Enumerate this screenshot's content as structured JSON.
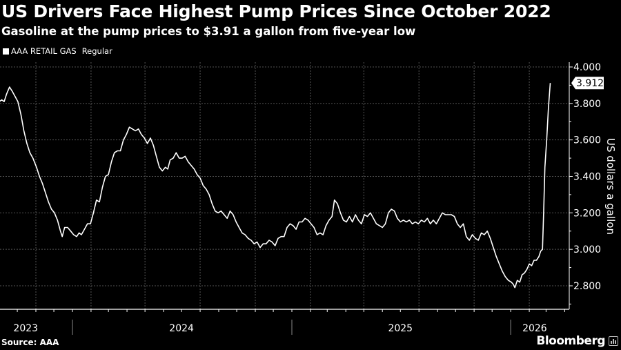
{
  "header": {
    "title": "US Drivers Face Highest Pump Prices Since October 2022",
    "subtitle": "Gasoline at the pump prices to $3.91 a gallon from five-year low"
  },
  "legend": {
    "series_name": "AAA RETAIL GAS",
    "series_sub": "Regular"
  },
  "footer": {
    "source": "Source: AAA",
    "brand": "Bloomberg"
  },
  "colors": {
    "background": "#000000",
    "line": "#ffffff",
    "grid": "#555555"
  },
  "chart_data": {
    "type": "line",
    "title": "US Drivers Face Highest Pump Prices Since October 2022",
    "subtitle": "Gasoline at the pump prices to $3.91 a gallon from five-year low",
    "xlabel": "",
    "ylabel": "US dollars a gallon",
    "ylim": [
      2.68,
      4.05
    ],
    "xlim": [
      "2023-09-01",
      "2026-03-20"
    ],
    "yticks": [
      2.8,
      3.0,
      3.2,
      3.4,
      3.6,
      3.8,
      4.0
    ],
    "ytick_labels": [
      "2.800",
      "3.000",
      "3.200",
      "3.400",
      "3.600",
      "3.800",
      "4.000"
    ],
    "year_labels": [
      "2023",
      "2024",
      "2025",
      "2026"
    ],
    "year_label_dates": [
      "2023-10-15",
      "2024-07-01",
      "2025-07-01",
      "2026-02-10"
    ],
    "year_boundaries": [
      "2024-01-01",
      "2025-01-01",
      "2026-01-01"
    ],
    "grid": true,
    "legend_position": "top-left",
    "last_value_label": "3.912",
    "series": [
      {
        "name": "AAA RETAIL GAS Regular",
        "points": [
          [
            "2023-09-01",
            3.81
          ],
          [
            "2023-09-05",
            3.82
          ],
          [
            "2023-09-09",
            3.81
          ],
          [
            "2023-09-13",
            3.85
          ],
          [
            "2023-09-18",
            3.89
          ],
          [
            "2023-09-22",
            3.87
          ],
          [
            "2023-09-27",
            3.84
          ],
          [
            "2023-10-02",
            3.81
          ],
          [
            "2023-10-07",
            3.74
          ],
          [
            "2023-10-12",
            3.65
          ],
          [
            "2023-10-17",
            3.58
          ],
          [
            "2023-10-22",
            3.53
          ],
          [
            "2023-10-27",
            3.5
          ],
          [
            "2023-11-02",
            3.45
          ],
          [
            "2023-11-07",
            3.4
          ],
          [
            "2023-11-12",
            3.36
          ],
          [
            "2023-11-17",
            3.31
          ],
          [
            "2023-11-22",
            3.26
          ],
          [
            "2023-11-27",
            3.22
          ],
          [
            "2023-12-02",
            3.2
          ],
          [
            "2023-12-07",
            3.16
          ],
          [
            "2023-12-12",
            3.1
          ],
          [
            "2023-12-15",
            3.07
          ],
          [
            "2023-12-19",
            3.12
          ],
          [
            "2023-12-24",
            3.12
          ],
          [
            "2023-12-29",
            3.1
          ],
          [
            "2024-01-03",
            3.08
          ],
          [
            "2024-01-08",
            3.07
          ],
          [
            "2024-01-12",
            3.09
          ],
          [
            "2024-01-16",
            3.08
          ],
          [
            "2024-01-21",
            3.11
          ],
          [
            "2024-01-26",
            3.14
          ],
          [
            "2024-01-31",
            3.14
          ],
          [
            "2024-02-05",
            3.2
          ],
          [
            "2024-02-10",
            3.27
          ],
          [
            "2024-02-15",
            3.26
          ],
          [
            "2024-02-20",
            3.34
          ],
          [
            "2024-02-25",
            3.4
          ],
          [
            "2024-03-01",
            3.41
          ],
          [
            "2024-03-06",
            3.48
          ],
          [
            "2024-03-11",
            3.53
          ],
          [
            "2024-03-16",
            3.54
          ],
          [
            "2024-03-21",
            3.54
          ],
          [
            "2024-03-26",
            3.6
          ],
          [
            "2024-03-31",
            3.63
          ],
          [
            "2024-04-05",
            3.67
          ],
          [
            "2024-04-10",
            3.66
          ],
          [
            "2024-04-15",
            3.65
          ],
          [
            "2024-04-20",
            3.66
          ],
          [
            "2024-04-25",
            3.63
          ],
          [
            "2024-04-30",
            3.61
          ],
          [
            "2024-05-05",
            3.58
          ],
          [
            "2024-05-10",
            3.61
          ],
          [
            "2024-05-15",
            3.57
          ],
          [
            "2024-05-20",
            3.51
          ],
          [
            "2024-05-25",
            3.45
          ],
          [
            "2024-05-30",
            3.43
          ],
          [
            "2024-06-04",
            3.45
          ],
          [
            "2024-06-08",
            3.44
          ],
          [
            "2024-06-12",
            3.49
          ],
          [
            "2024-06-17",
            3.5
          ],
          [
            "2024-06-22",
            3.53
          ],
          [
            "2024-06-27",
            3.5
          ],
          [
            "2024-07-02",
            3.5
          ],
          [
            "2024-07-07",
            3.51
          ],
          [
            "2024-07-12",
            3.48
          ],
          [
            "2024-07-17",
            3.46
          ],
          [
            "2024-07-22",
            3.44
          ],
          [
            "2024-07-27",
            3.41
          ],
          [
            "2024-08-01",
            3.39
          ],
          [
            "2024-08-06",
            3.35
          ],
          [
            "2024-08-11",
            3.33
          ],
          [
            "2024-08-16",
            3.3
          ],
          [
            "2024-08-21",
            3.25
          ],
          [
            "2024-08-26",
            3.21
          ],
          [
            "2024-08-31",
            3.2
          ],
          [
            "2024-09-05",
            3.21
          ],
          [
            "2024-09-10",
            3.19
          ],
          [
            "2024-09-15",
            3.17
          ],
          [
            "2024-09-20",
            3.21
          ],
          [
            "2024-09-25",
            3.19
          ],
          [
            "2024-09-30",
            3.15
          ],
          [
            "2024-10-05",
            3.12
          ],
          [
            "2024-10-10",
            3.09
          ],
          [
            "2024-10-15",
            3.08
          ],
          [
            "2024-10-20",
            3.06
          ],
          [
            "2024-10-25",
            3.05
          ],
          [
            "2024-10-30",
            3.03
          ],
          [
            "2024-11-04",
            3.04
          ],
          [
            "2024-11-09",
            3.01
          ],
          [
            "2024-11-14",
            3.03
          ],
          [
            "2024-11-19",
            3.03
          ],
          [
            "2024-11-24",
            3.05
          ],
          [
            "2024-11-29",
            3.04
          ],
          [
            "2024-12-04",
            3.02
          ],
          [
            "2024-12-09",
            3.06
          ],
          [
            "2024-12-14",
            3.07
          ],
          [
            "2024-12-19",
            3.07
          ],
          [
            "2024-12-24",
            3.12
          ],
          [
            "2024-12-29",
            3.14
          ],
          [
            "2025-01-03",
            3.13
          ],
          [
            "2025-01-08",
            3.11
          ],
          [
            "2025-01-13",
            3.15
          ],
          [
            "2025-01-18",
            3.15
          ],
          [
            "2025-01-23",
            3.17
          ],
          [
            "2025-01-28",
            3.16
          ],
          [
            "2025-02-02",
            3.14
          ],
          [
            "2025-02-07",
            3.12
          ],
          [
            "2025-02-12",
            3.08
          ],
          [
            "2025-02-17",
            3.09
          ],
          [
            "2025-02-22",
            3.08
          ],
          [
            "2025-02-27",
            3.13
          ],
          [
            "2025-03-04",
            3.16
          ],
          [
            "2025-03-09",
            3.18
          ],
          [
            "2025-03-13",
            3.27
          ],
          [
            "2025-03-18",
            3.25
          ],
          [
            "2025-03-23",
            3.2
          ],
          [
            "2025-03-28",
            3.16
          ],
          [
            "2025-04-02",
            3.15
          ],
          [
            "2025-04-07",
            3.18
          ],
          [
            "2025-04-12",
            3.15
          ],
          [
            "2025-04-17",
            3.19
          ],
          [
            "2025-04-22",
            3.16
          ],
          [
            "2025-04-27",
            3.14
          ],
          [
            "2025-05-02",
            3.19
          ],
          [
            "2025-05-07",
            3.18
          ],
          [
            "2025-05-12",
            3.2
          ],
          [
            "2025-05-17",
            3.17
          ],
          [
            "2025-05-22",
            3.14
          ],
          [
            "2025-05-27",
            3.13
          ],
          [
            "2025-06-01",
            3.12
          ],
          [
            "2025-06-06",
            3.14
          ],
          [
            "2025-06-11",
            3.2
          ],
          [
            "2025-06-16",
            3.22
          ],
          [
            "2025-06-21",
            3.21
          ],
          [
            "2025-06-26",
            3.17
          ],
          [
            "2025-07-01",
            3.15
          ],
          [
            "2025-07-06",
            3.16
          ],
          [
            "2025-07-11",
            3.15
          ],
          [
            "2025-07-16",
            3.16
          ],
          [
            "2025-07-21",
            3.14
          ],
          [
            "2025-07-26",
            3.15
          ],
          [
            "2025-07-31",
            3.14
          ],
          [
            "2025-08-05",
            3.16
          ],
          [
            "2025-08-10",
            3.15
          ],
          [
            "2025-08-15",
            3.17
          ],
          [
            "2025-08-20",
            3.14
          ],
          [
            "2025-08-25",
            3.16
          ],
          [
            "2025-08-30",
            3.14
          ],
          [
            "2025-09-04",
            3.17
          ],
          [
            "2025-09-09",
            3.2
          ],
          [
            "2025-09-14",
            3.19
          ],
          [
            "2025-09-19",
            3.19
          ],
          [
            "2025-09-24",
            3.19
          ],
          [
            "2025-09-29",
            3.18
          ],
          [
            "2025-10-04",
            3.14
          ],
          [
            "2025-10-09",
            3.12
          ],
          [
            "2025-10-14",
            3.14
          ],
          [
            "2025-10-19",
            3.07
          ],
          [
            "2025-10-24",
            3.05
          ],
          [
            "2025-10-29",
            3.08
          ],
          [
            "2025-11-03",
            3.06
          ],
          [
            "2025-11-08",
            3.05
          ],
          [
            "2025-11-13",
            3.09
          ],
          [
            "2025-11-18",
            3.08
          ],
          [
            "2025-11-23",
            3.1
          ],
          [
            "2025-11-28",
            3.06
          ],
          [
            "2025-12-03",
            3.01
          ],
          [
            "2025-12-08",
            2.96
          ],
          [
            "2025-12-13",
            2.92
          ],
          [
            "2025-12-18",
            2.88
          ],
          [
            "2025-12-23",
            2.85
          ],
          [
            "2025-12-28",
            2.83
          ],
          [
            "2026-01-02",
            2.82
          ],
          [
            "2026-01-05",
            2.81
          ],
          [
            "2026-01-08",
            2.79
          ],
          [
            "2026-01-12",
            2.83
          ],
          [
            "2026-01-16",
            2.82
          ],
          [
            "2026-01-20",
            2.86
          ],
          [
            "2026-01-24",
            2.87
          ],
          [
            "2026-01-28",
            2.89
          ],
          [
            "2026-02-01",
            2.92
          ],
          [
            "2026-02-05",
            2.91
          ],
          [
            "2026-02-09",
            2.94
          ],
          [
            "2026-02-13",
            2.94
          ],
          [
            "2026-02-17",
            2.96
          ],
          [
            "2026-02-20",
            2.99
          ],
          [
            "2026-02-23",
            3.0
          ],
          [
            "2026-02-25",
            3.2
          ],
          [
            "2026-02-27",
            3.45
          ],
          [
            "2026-03-02",
            3.6
          ],
          [
            "2026-03-05",
            3.78
          ],
          [
            "2026-03-08",
            3.912
          ]
        ]
      }
    ]
  }
}
